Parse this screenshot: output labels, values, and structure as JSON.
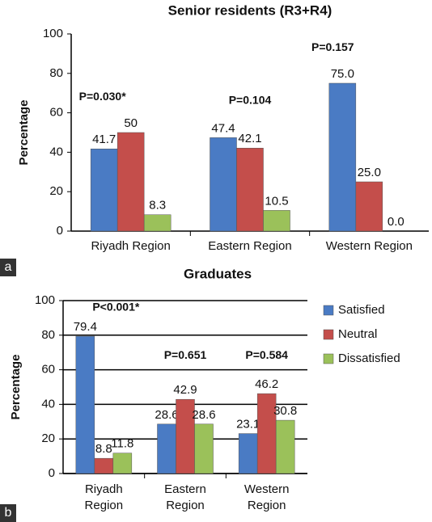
{
  "chart_data": [
    {
      "type": "bar",
      "panel": "a",
      "title": "Senior residents (R3+R4)",
      "y_label": "Percentage",
      "categories": [
        "Riyadh Region",
        "Eastern Region",
        "Western Region"
      ],
      "series": [
        {
          "color": "#4a7bc4",
          "values": [
            41.7,
            47.4,
            75.0
          ],
          "value_labels": [
            "41.7",
            "47.4",
            "75.0"
          ]
        },
        {
          "color": "#c44e4b",
          "values": [
            50,
            42.1,
            25.0
          ],
          "value_labels": [
            "50",
            "42.1",
            "25.0"
          ]
        },
        {
          "color": "#9bc15a",
          "values": [
            8.3,
            10.5,
            0.0
          ],
          "value_labels": [
            "8.3",
            "10.5",
            "0.0"
          ]
        }
      ],
      "annotations": [
        "P=0.030*",
        "P=0.104",
        "P=0.157"
      ],
      "ylim": [
        0,
        100
      ],
      "yticks": [
        0,
        20,
        40,
        60,
        80,
        100
      ],
      "grid": false
    },
    {
      "type": "bar",
      "panel": "b",
      "title": "Graduates",
      "y_label": "Percentage",
      "categories": [
        "Riyadh Region",
        "Eastern Region",
        "Western Region"
      ],
      "series": [
        {
          "name": "Satisfied",
          "color": "#4a7bc4",
          "values": [
            79.4,
            28.6,
            23.1
          ],
          "value_labels": [
            "79.4",
            "28.6",
            "23.1"
          ]
        },
        {
          "name": "Neutral",
          "color": "#c44e4b",
          "values": [
            8.8,
            42.9,
            46.2
          ],
          "value_labels": [
            "8.8",
            "42.9",
            "46.2"
          ]
        },
        {
          "name": "Dissatisfied",
          "color": "#9bc15a",
          "values": [
            11.8,
            28.6,
            30.8
          ],
          "value_labels": [
            "11.8",
            "28.6",
            "30.8"
          ]
        }
      ],
      "annotations": [
        "P<0.001*",
        "P=0.651",
        "P=0.584"
      ],
      "ylim": [
        0,
        100
      ],
      "yticks": [
        0,
        20,
        40,
        60,
        80,
        100
      ],
      "grid": true,
      "legend": "right"
    }
  ]
}
